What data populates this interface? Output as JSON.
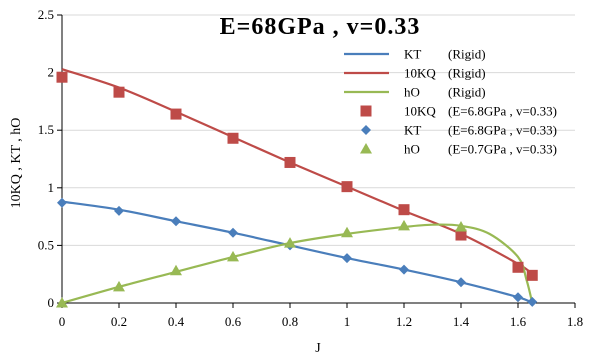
{
  "chart_data": {
    "type": "line",
    "title": "E=68GPa  ,  v=0.33",
    "xlabel": "J",
    "ylabel": "10KQ , KT , hO",
    "xlim": [
      0,
      1.8
    ],
    "ylim": [
      0,
      2.5
    ],
    "x_ticks": [
      "0",
      "0.2",
      "0.4",
      "0.6",
      "0.8",
      "1",
      "1.2",
      "1.4",
      "1.6",
      "1.8"
    ],
    "y_ticks": [
      "0",
      "0.5",
      "1",
      "1.5",
      "2",
      "2.5"
    ],
    "grid": "horizontal",
    "legend_position": "top-right",
    "series": [
      {
        "name": "KT",
        "label2": "(Rigid)",
        "style": "line",
        "color": "#4a7ebb",
        "x": [
          0,
          0.2,
          0.4,
          0.6,
          0.8,
          1.0,
          1.2,
          1.4,
          1.6,
          1.65
        ],
        "y": [
          0.88,
          0.81,
          0.71,
          0.61,
          0.5,
          0.39,
          0.29,
          0.18,
          0.05,
          0.0
        ]
      },
      {
        "name": "10KQ",
        "label2": "(Rigid)",
        "style": "line",
        "color": "#be4b48",
        "x": [
          0,
          0.2,
          0.4,
          0.6,
          0.8,
          1.0,
          1.2,
          1.4,
          1.6,
          1.65
        ],
        "y": [
          2.03,
          1.87,
          1.66,
          1.44,
          1.22,
          1.01,
          0.8,
          0.6,
          0.34,
          0.25
        ]
      },
      {
        "name": "hO",
        "label2": "(Rigid)",
        "style": "line",
        "color": "#98b954",
        "x": [
          0,
          0.2,
          0.4,
          0.6,
          0.8,
          1.0,
          1.2,
          1.3,
          1.4,
          1.5,
          1.6,
          1.63,
          1.65
        ],
        "y": [
          0.0,
          0.14,
          0.27,
          0.4,
          0.52,
          0.6,
          0.66,
          0.68,
          0.67,
          0.6,
          0.4,
          0.2,
          0.0
        ]
      },
      {
        "name": "10KQ",
        "label2": "(E=6.8GPa , v=0.33)",
        "style": "marker",
        "marker": "square",
        "color": "#be4b48",
        "x": [
          0,
          0.2,
          0.4,
          0.6,
          0.8,
          1.0,
          1.2,
          1.4,
          1.6,
          1.65
        ],
        "y": [
          1.96,
          1.83,
          1.64,
          1.43,
          1.22,
          1.01,
          0.81,
          0.59,
          0.31,
          0.24
        ]
      },
      {
        "name": "KT",
        "label2": "(E=6.8GPa , v=0.33)",
        "style": "marker",
        "marker": "diamond",
        "color": "#4a7ebb",
        "x": [
          0,
          0.2,
          0.4,
          0.6,
          0.8,
          1.0,
          1.2,
          1.4,
          1.6,
          1.65
        ],
        "y": [
          0.87,
          0.8,
          0.71,
          0.61,
          0.5,
          0.39,
          0.29,
          0.18,
          0.05,
          0.01
        ]
      },
      {
        "name": "hO",
        "label2": "(E=0.7GPa , v=0.33)",
        "style": "marker",
        "marker": "triangle",
        "color": "#98b954",
        "x": [
          0,
          0.2,
          0.4,
          0.6,
          0.8,
          1.0,
          1.2,
          1.4
        ],
        "y": [
          0.0,
          0.14,
          0.28,
          0.4,
          0.52,
          0.61,
          0.67,
          0.66
        ]
      }
    ]
  }
}
